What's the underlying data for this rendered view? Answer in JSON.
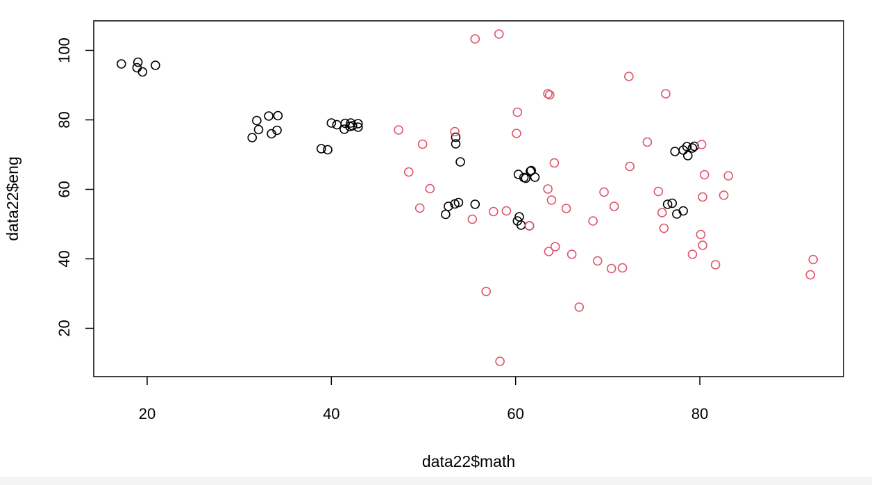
{
  "chart_data": {
    "type": "scatter",
    "title": "",
    "xlabel": "data22$math",
    "ylabel": "data22$eng",
    "xlim": [
      14.2,
      95.6
    ],
    "ylim": [
      6.1,
      108.5
    ],
    "x_ticks": [
      20,
      40,
      60,
      80
    ],
    "y_ticks": [
      20,
      40,
      60,
      80,
      100
    ],
    "x_tick_labels": [
      "20",
      "40",
      "60",
      "80"
    ],
    "y_tick_labels": [
      "20",
      "40",
      "60",
      "80",
      "100"
    ],
    "grid": false,
    "legend": "none",
    "marker": "open-circle",
    "series": [
      {
        "color": "#000000",
        "points": [
          [
            17.2,
            96.1
          ],
          [
            18.9,
            95.0
          ],
          [
            19.0,
            96.6
          ],
          [
            19.5,
            93.8
          ],
          [
            20.9,
            95.7
          ],
          [
            31.4,
            74.9
          ],
          [
            31.9,
            79.8
          ],
          [
            32.1,
            77.2
          ],
          [
            33.2,
            81.1
          ],
          [
            33.5,
            76.0
          ],
          [
            34.1,
            77.0
          ],
          [
            34.2,
            81.2
          ],
          [
            38.9,
            71.7
          ],
          [
            39.6,
            71.4
          ],
          [
            40.0,
            79.1
          ],
          [
            40.6,
            78.6
          ],
          [
            41.4,
            77.3
          ],
          [
            41.5,
            79.0
          ],
          [
            42.0,
            78.1
          ],
          [
            42.1,
            79.1
          ],
          [
            42.3,
            78.3
          ],
          [
            42.9,
            78.9
          ],
          [
            42.9,
            77.9
          ],
          [
            53.5,
            75.0
          ],
          [
            53.5,
            73.1
          ],
          [
            54.0,
            67.9
          ],
          [
            52.4,
            52.8
          ],
          [
            52.7,
            55.1
          ],
          [
            53.4,
            55.8
          ],
          [
            53.8,
            56.2
          ],
          [
            55.6,
            55.7
          ],
          [
            60.3,
            64.3
          ],
          [
            60.9,
            63.4
          ],
          [
            61.1,
            63.2
          ],
          [
            61.6,
            65.2
          ],
          [
            61.7,
            65.4
          ],
          [
            62.1,
            63.5
          ],
          [
            60.2,
            50.9
          ],
          [
            60.4,
            52.1
          ],
          [
            60.6,
            49.7
          ],
          [
            61.5,
            49.5
          ],
          [
            77.3,
            70.9
          ],
          [
            78.2,
            71.3
          ],
          [
            78.6,
            72.3
          ],
          [
            78.7,
            69.7
          ],
          [
            79.2,
            71.9
          ],
          [
            79.4,
            72.4
          ],
          [
            76.5,
            55.7
          ],
          [
            77.0,
            56.0
          ],
          [
            77.5,
            52.9
          ],
          [
            78.2,
            53.8
          ]
        ]
      },
      {
        "color": "#df536b",
        "points": [
          [
            55.6,
            103.3
          ],
          [
            58.2,
            104.7
          ],
          [
            72.3,
            92.5
          ],
          [
            63.5,
            87.5
          ],
          [
            63.7,
            87.2
          ],
          [
            76.3,
            87.5
          ],
          [
            60.2,
            82.2
          ],
          [
            47.3,
            77.1
          ],
          [
            53.4,
            76.6
          ],
          [
            60.1,
            76.1
          ],
          [
            49.9,
            73.0
          ],
          [
            74.3,
            73.6
          ],
          [
            80.2,
            72.9
          ],
          [
            64.2,
            67.6
          ],
          [
            72.4,
            66.6
          ],
          [
            48.4,
            65.0
          ],
          [
            80.5,
            64.2
          ],
          [
            83.1,
            63.9
          ],
          [
            50.7,
            60.2
          ],
          [
            63.5,
            60.1
          ],
          [
            69.6,
            59.2
          ],
          [
            75.5,
            59.4
          ],
          [
            82.6,
            58.3
          ],
          [
            80.3,
            57.8
          ],
          [
            63.9,
            56.9
          ],
          [
            70.7,
            55.1
          ],
          [
            49.6,
            54.6
          ],
          [
            65.5,
            54.5
          ],
          [
            57.6,
            53.6
          ],
          [
            59.0,
            53.8
          ],
          [
            75.9,
            53.3
          ],
          [
            55.3,
            51.4
          ],
          [
            68.4,
            50.9
          ],
          [
            61.5,
            49.5
          ],
          [
            76.1,
            48.8
          ],
          [
            80.1,
            47.0
          ],
          [
            80.3,
            43.9
          ],
          [
            64.3,
            43.5
          ],
          [
            63.6,
            42.1
          ],
          [
            66.1,
            41.3
          ],
          [
            79.2,
            41.3
          ],
          [
            68.9,
            39.4
          ],
          [
            81.7,
            38.3
          ],
          [
            70.4,
            37.2
          ],
          [
            71.6,
            37.4
          ],
          [
            92.3,
            39.8
          ],
          [
            92.0,
            35.4
          ],
          [
            56.8,
            30.6
          ],
          [
            66.9,
            26.1
          ],
          [
            58.3,
            10.5
          ]
        ]
      }
    ]
  }
}
